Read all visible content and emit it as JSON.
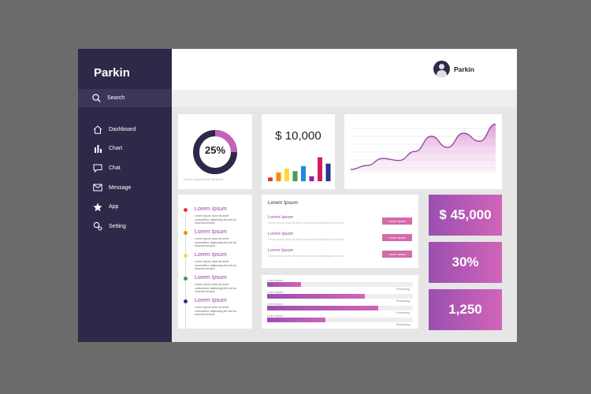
{
  "app": {
    "brand": "Parkin"
  },
  "search": {
    "label": "Search"
  },
  "nav": [
    {
      "label": "Dashboard",
      "icon": "home-icon"
    },
    {
      "label": "Chart",
      "icon": "bar-chart-icon"
    },
    {
      "label": "Chat",
      "icon": "chat-icon"
    },
    {
      "label": "Message",
      "icon": "mail-icon"
    },
    {
      "label": "App",
      "icon": "star-icon"
    },
    {
      "label": "Setting",
      "icon": "gear-icon"
    }
  ],
  "user": {
    "name": "Parkin",
    "status_color": "#1aa34a"
  },
  "donut": {
    "value_label": "25%",
    "fraction": 0.25,
    "caption": "Lorem ipsum Dolor Sit Amet",
    "accent": "#c563b9"
  },
  "money": {
    "value": "$ 10,000",
    "bars": [
      {
        "value": 0.15,
        "color": "#e53935"
      },
      {
        "value": 0.35,
        "color": "#fb8c00"
      },
      {
        "value": 0.5,
        "color": "#fdd835"
      },
      {
        "value": 0.4,
        "color": "#43a047"
      },
      {
        "value": 0.6,
        "color": "#1e88e5"
      },
      {
        "value": 0.2,
        "color": "#8e24aa"
      },
      {
        "value": 0.95,
        "color": "#d81b60"
      },
      {
        "value": 0.7,
        "color": "#283593"
      }
    ]
  },
  "line_chart": {
    "values": [
      0.06,
      0.14,
      0.28,
      0.24,
      0.42,
      0.72,
      0.5,
      0.78,
      0.62,
      0.96
    ]
  },
  "timeline": [
    {
      "title": "Lorem Ipsum",
      "text": "Lorem ipsum dolor sit amet consectetur adipiscing elit sed do eiusmod tempor",
      "color": "#e53935"
    },
    {
      "title": "Lorem Ipsum",
      "text": "Lorem ipsum dolor sit amet consectetur adipiscing elit sed do eiusmod tempor",
      "color": "#fb8c00"
    },
    {
      "title": "Lorem Ipsum",
      "text": "Lorem ipsum dolor sit amet consectetur adipiscing elit sed do eiusmod tempor",
      "color": "#fdd835"
    },
    {
      "title": "Lorem Ipsum",
      "text": "Lorem ipsum dolor sit amet consectetur adipiscing elit sed do eiusmod tempor",
      "color": "#43a047"
    },
    {
      "title": "Lorem Ipsum",
      "text": "Lorem ipsum dolor sit amet consectetur adipiscing elit sed do eiusmod tempor",
      "color": "#283593"
    }
  ],
  "list": {
    "heading": "Lorem Ipsum",
    "items": [
      {
        "title": "Lorem Ipsum",
        "text": "Lorem ipsum dolor sit amet consectetur adipiscing elit sed do",
        "button": "Lorem Ipsum"
      },
      {
        "title": "Lorem Ipsum",
        "text": "Lorem ipsum dolor sit amet consectetur adipiscing elit sed do",
        "button": "Lorem Ipsum"
      },
      {
        "title": "Lorem Ipsum",
        "text": "Lorem ipsum dolor sit amet consectetur adipiscing elit sed do",
        "button": "Lorem Ipsum"
      }
    ]
  },
  "progress": [
    {
      "label": "Lorem Ipsum",
      "end": "Processing",
      "fraction": 0.23
    },
    {
      "label": "Lorem Ipsum",
      "end": "Processing",
      "fraction": 0.67
    },
    {
      "label": "Lorem Ipsum",
      "end": "Processing",
      "fraction": 0.76
    },
    {
      "label": "Lorem Ipsum",
      "end": "Processing",
      "fraction": 0.4
    }
  ],
  "stats": {
    "a": "$ 45,000",
    "b": "30%",
    "c": "1,250"
  }
}
